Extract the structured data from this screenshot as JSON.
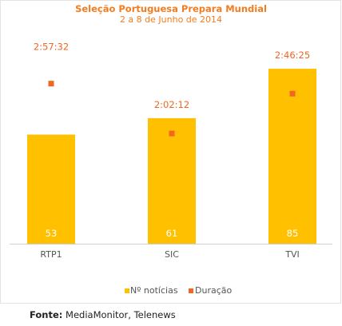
{
  "chart_data": {
    "type": "bar",
    "title": "Seleção Portuguesa Prepara Mundial",
    "subtitle": "2 a 8 de Junho de 2014",
    "categories": [
      "RTP1",
      "SIC",
      "TVI"
    ],
    "series": [
      {
        "name": "Nº notícias",
        "values": [
          53,
          61,
          85
        ],
        "color": "#ffc000",
        "mark": "bar"
      },
      {
        "name": "Duração",
        "values": [
          10652,
          7332,
          9985
        ],
        "labels": [
          "2:57:32",
          "2:02:12",
          "2:46:25"
        ],
        "color": "#f26522",
        "mark": "point"
      }
    ],
    "ylim_bars": [
      0,
      92
    ],
    "ylim_points": [
      0,
      12600
    ],
    "grid": false,
    "legend": "bottom"
  },
  "source": {
    "label": "Fonte:",
    "text": " MediaMonitor, Telenews"
  }
}
